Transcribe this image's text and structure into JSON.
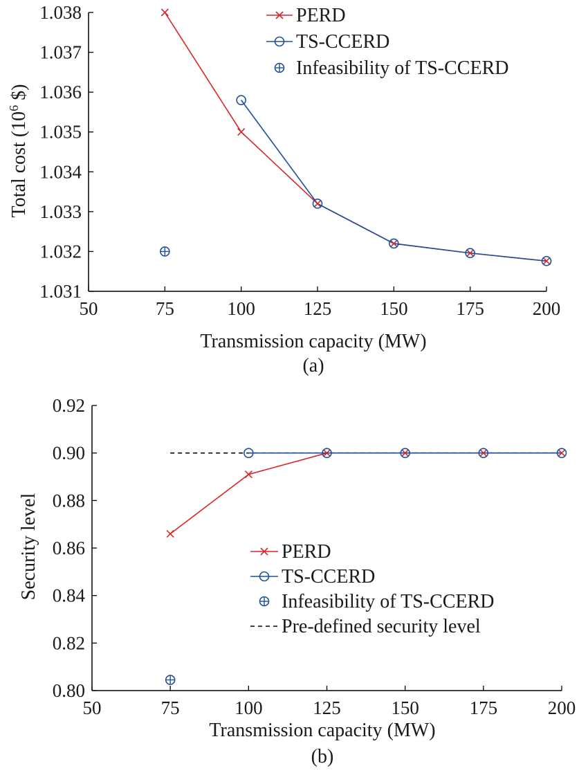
{
  "chart_data": [
    {
      "type": "line",
      "panel_label": "(a)",
      "xlabel": "Transmission capacity (MW)",
      "ylabel_main": "Total cost (10",
      "ylabel_sup": "6",
      "ylabel_tail": " $)",
      "xlim": [
        50,
        200
      ],
      "ylim": [
        1.031,
        1.038
      ],
      "xticks": [
        50,
        75,
        100,
        125,
        150,
        175,
        200
      ],
      "yticks": [
        1.031,
        1.032,
        1.033,
        1.034,
        1.035,
        1.036,
        1.037,
        1.038
      ],
      "ytick_decimals": 3,
      "legend_position": "top-right",
      "series": [
        {
          "name": "PERD",
          "color": "#d62728",
          "marker": "x",
          "x": [
            75,
            100,
            125,
            150,
            175,
            200
          ],
          "y": [
            1.038,
            1.035,
            1.0332,
            1.0322,
            1.03196,
            1.03176
          ]
        },
        {
          "name": "TS-CCERD",
          "color": "#1f4e9c",
          "marker": "circle",
          "x": [
            100,
            125,
            150,
            175,
            200
          ],
          "y": [
            1.0358,
            1.0332,
            1.0322,
            1.03196,
            1.03176
          ]
        }
      ],
      "infeasible": {
        "name": "Infeasibility of TS-CCERD",
        "color": "#1f4e9c",
        "x": [
          75
        ],
        "y": [
          1.032
        ]
      }
    },
    {
      "type": "line",
      "panel_label": "(b)",
      "xlabel": "Transmission capacity (MW)",
      "ylabel_main": "Security level",
      "ylabel_sup": "",
      "ylabel_tail": "",
      "xlim": [
        50,
        200
      ],
      "ylim": [
        0.8,
        0.92
      ],
      "xticks": [
        50,
        75,
        100,
        125,
        150,
        175,
        200
      ],
      "yticks": [
        0.8,
        0.82,
        0.84,
        0.86,
        0.88,
        0.9,
        0.92
      ],
      "ytick_decimals": 2,
      "legend_position": "center-right",
      "series": [
        {
          "name": "PERD",
          "color": "#d62728",
          "marker": "x",
          "x": [
            75,
            100,
            125,
            150,
            175,
            200
          ],
          "y": [
            0.866,
            0.891,
            0.9,
            0.9,
            0.9,
            0.9
          ]
        },
        {
          "name": "TS-CCERD",
          "color": "#1f4e9c",
          "marker": "circle",
          "x": [
            100,
            125,
            150,
            175,
            200
          ],
          "y": [
            0.9,
            0.9,
            0.9,
            0.9,
            0.9
          ]
        }
      ],
      "infeasible": {
        "name": "Infeasibility of TS-CCERD",
        "color": "#1f4e9c",
        "x": [
          75
        ],
        "y": [
          0.8045
        ]
      },
      "reference_line": {
        "name": "Pre-defined security level",
        "color": "#000000",
        "x": [
          75,
          200
        ],
        "y": 0.9
      }
    }
  ]
}
